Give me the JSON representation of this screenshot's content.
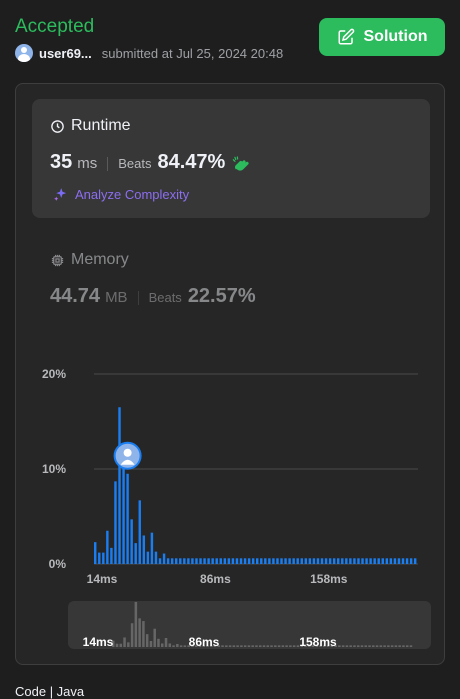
{
  "status": {
    "title": "Accepted",
    "username": "user69...",
    "submitted_text": "submitted at Jul 25, 2024 20:48"
  },
  "solution_button": {
    "label": "Solution"
  },
  "runtime": {
    "title": "Runtime",
    "value": "35",
    "unit": "ms",
    "beats_label": "Beats",
    "beats_value": "84.47%",
    "analyze_label": "Analyze Complexity"
  },
  "memory": {
    "title": "Memory",
    "value": "44.74",
    "unit": "MB",
    "beats_label": "Beats",
    "beats_value": "22.57%"
  },
  "colors": {
    "accent_green": "#2cbb5d",
    "bar_blue": "#1a7df0",
    "analyze_purple": "#8c6ef0"
  },
  "chart_data": {
    "type": "bar",
    "x_ticks": [
      "14ms",
      "86ms",
      "158ms"
    ],
    "y_ticks": [
      "0%",
      "10%",
      "20%"
    ],
    "ylim": [
      0,
      20
    ],
    "current_index": 8,
    "values": [
      2.3,
      1.2,
      1.2,
      3.5,
      1.7,
      8.7,
      16.5,
      10.5,
      9.5,
      4.7,
      2.2,
      6.7,
      3.0,
      1.3,
      3.3,
      1.3,
      0.6,
      1.1,
      0.6,
      0.6,
      0.6,
      0.6,
      0.6,
      0.6,
      0.6,
      0.6,
      0.6,
      0.6,
      0.6,
      0.6,
      0.6,
      0.6,
      0.6,
      0.6,
      0.6,
      0.6,
      0.6,
      0.6,
      0.6,
      0.6,
      0.6,
      0.6,
      0.6,
      0.6,
      0.6,
      0.6,
      0.6,
      0.6,
      0.6,
      0.6,
      0.6,
      0.6,
      0.6,
      0.6,
      0.6,
      0.6,
      0.6,
      0.6,
      0.6,
      0.6,
      0.6,
      0.6,
      0.6,
      0.6,
      0.6,
      0.6,
      0.6,
      0.6,
      0.6,
      0.6,
      0.6,
      0.6,
      0.6,
      0.6,
      0.6,
      0.6,
      0.6,
      0.6,
      0.6,
      0.6
    ]
  },
  "bottom_text": "Code | Java"
}
